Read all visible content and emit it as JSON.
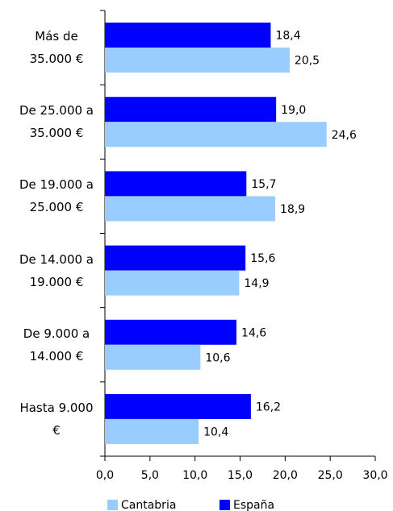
{
  "chart_data": {
    "type": "barh",
    "categories": [
      "Más de 35.000 €",
      "De 25.000 a 35.000 €",
      "De 19.000 a 25.000 €",
      "De 14.000 a 19.000 €",
      "De 9.000 a 14.000 €",
      "Hasta 9.000 €"
    ],
    "series": [
      {
        "name": "España",
        "color": "#0000ff",
        "values": [
          18.4,
          19.0,
          15.7,
          15.6,
          14.6,
          16.2
        ],
        "value_labels": [
          "18,4",
          "19,0",
          "15,7",
          "15,6",
          "14,6",
          "16,2"
        ]
      },
      {
        "name": "Cantabria",
        "color": "#99ccff",
        "values": [
          20.5,
          24.6,
          18.9,
          14.9,
          10.6,
          10.4
        ],
        "value_labels": [
          "20,5",
          "24,6",
          "18,9",
          "14,9",
          "10,6",
          "10,4"
        ]
      }
    ],
    "legend_order": [
      "Cantabria",
      "España"
    ],
    "xlim": [
      0,
      30
    ],
    "xticks": [
      {
        "value": 0,
        "label": "0,0"
      },
      {
        "value": 5,
        "label": "5,0"
      },
      {
        "value": 10,
        "label": "10,0"
      },
      {
        "value": 15,
        "label": "15,0"
      },
      {
        "value": 20,
        "label": "20,0"
      },
      {
        "value": 25,
        "label": "25,0"
      },
      {
        "value": 30,
        "label": "30,0"
      }
    ],
    "grid": false,
    "legend": "bottom"
  }
}
